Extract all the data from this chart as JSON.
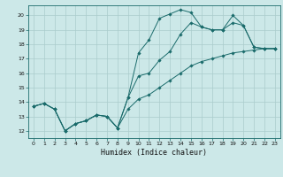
{
  "title": "",
  "xlabel": "Humidex (Indice chaleur)",
  "ylabel": "",
  "background_color": "#cce8e8",
  "line_color": "#1a6b6b",
  "grid_color": "#aacccc",
  "xlim": [
    -0.5,
    23.5
  ],
  "ylim": [
    11.5,
    20.7
  ],
  "xticks": [
    0,
    1,
    2,
    3,
    4,
    5,
    6,
    7,
    8,
    9,
    10,
    11,
    12,
    13,
    14,
    15,
    16,
    17,
    18,
    19,
    20,
    21,
    22,
    23
  ],
  "yticks": [
    12,
    13,
    14,
    15,
    16,
    17,
    18,
    19,
    20
  ],
  "line1_x": [
    0,
    1,
    2,
    3,
    4,
    5,
    6,
    7,
    8,
    9,
    10,
    11,
    12,
    13,
    14,
    15,
    16,
    17,
    18,
    19,
    20,
    21,
    22,
    23
  ],
  "line1_y": [
    13.7,
    13.9,
    13.5,
    12.0,
    12.5,
    12.7,
    13.1,
    13.0,
    12.2,
    14.3,
    17.4,
    18.3,
    19.8,
    20.1,
    20.4,
    20.2,
    19.2,
    19.0,
    19.0,
    20.0,
    19.3,
    17.8,
    17.7,
    17.7
  ],
  "line2_x": [
    0,
    1,
    2,
    3,
    4,
    5,
    6,
    7,
    8,
    9,
    10,
    11,
    12,
    13,
    14,
    15,
    16,
    17,
    18,
    19,
    20,
    21,
    22,
    23
  ],
  "line2_y": [
    13.7,
    13.9,
    13.5,
    12.0,
    12.5,
    12.7,
    13.1,
    13.0,
    12.2,
    14.3,
    15.8,
    16.0,
    16.9,
    17.5,
    18.7,
    19.5,
    19.2,
    19.0,
    19.0,
    19.5,
    19.3,
    17.8,
    17.7,
    17.7
  ],
  "line3_x": [
    0,
    1,
    2,
    3,
    4,
    5,
    6,
    7,
    8,
    9,
    10,
    11,
    12,
    13,
    14,
    15,
    16,
    17,
    18,
    19,
    20,
    21,
    22,
    23
  ],
  "line3_y": [
    13.7,
    13.9,
    13.5,
    12.0,
    12.5,
    12.7,
    13.1,
    13.0,
    12.2,
    13.5,
    14.2,
    14.5,
    15.0,
    15.5,
    16.0,
    16.5,
    16.8,
    17.0,
    17.2,
    17.4,
    17.5,
    17.6,
    17.7,
    17.7
  ],
  "tick_fontsize": 4.5,
  "xlabel_fontsize": 6.0,
  "marker_size": 1.8,
  "line_width": 0.7
}
